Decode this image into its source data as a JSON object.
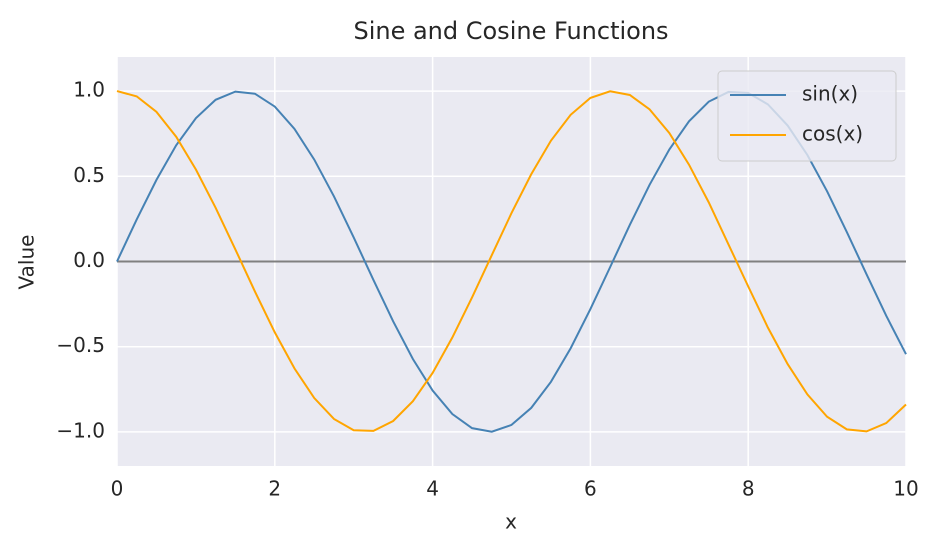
{
  "chart_data": {
    "type": "line",
    "title": "Sine and Cosine Functions",
    "xlabel": "x",
    "ylabel": "Value",
    "x": [
      0,
      0.25,
      0.5,
      0.75,
      1,
      1.25,
      1.5,
      1.75,
      2,
      2.25,
      2.5,
      2.75,
      3,
      3.25,
      3.5,
      3.75,
      4,
      4.25,
      4.5,
      4.75,
      5,
      5.25,
      5.5,
      5.75,
      6,
      6.25,
      6.5,
      6.75,
      7,
      7.25,
      7.5,
      7.75,
      8,
      8.25,
      8.5,
      8.75,
      9,
      9.25,
      9.5,
      9.75,
      10
    ],
    "series": [
      {
        "name": "sin(x)",
        "color": "#4682b4",
        "values": [
          0,
          0.247,
          0.479,
          0.682,
          0.841,
          0.949,
          0.997,
          0.984,
          0.909,
          0.778,
          0.598,
          0.382,
          0.141,
          -0.108,
          -0.351,
          -0.572,
          -0.757,
          -0.895,
          -0.978,
          -0.999,
          -0.959,
          -0.859,
          -0.706,
          -0.509,
          -0.279,
          -0.033,
          0.215,
          0.45,
          0.657,
          0.823,
          0.938,
          0.995,
          0.989,
          0.922,
          0.798,
          0.625,
          0.412,
          0.173,
          -0.075,
          -0.319,
          -0.544
        ]
      },
      {
        "name": "cos(x)",
        "color": "#ffa500",
        "values": [
          1,
          0.969,
          0.878,
          0.732,
          0.54,
          0.315,
          0.071,
          -0.178,
          -0.416,
          -0.628,
          -0.801,
          -0.924,
          -0.99,
          -0.994,
          -0.936,
          -0.82,
          -0.654,
          -0.446,
          -0.211,
          0.037,
          0.284,
          0.512,
          0.709,
          0.861,
          0.96,
          0.999,
          0.977,
          0.893,
          0.754,
          0.568,
          0.347,
          0.1,
          -0.146,
          -0.388,
          -0.602,
          -0.78,
          -0.911,
          -0.985,
          -0.997,
          -0.948,
          -0.839
        ]
      }
    ],
    "hlines": [
      0
    ],
    "xlim": [
      0,
      10
    ],
    "xticks": [
      0,
      2,
      4,
      6,
      8,
      10
    ],
    "ylim": [
      -1.2,
      1.2
    ],
    "yticks": [
      {
        "value": -1,
        "label": "−1.0"
      },
      {
        "value": -0.5,
        "label": "−0.5"
      },
      {
        "value": 0,
        "label": "0.0"
      },
      {
        "value": 0.5,
        "label": "0.5"
      },
      {
        "value": 1,
        "label": "1.0"
      }
    ],
    "grid": true,
    "legend": "upper right"
  }
}
